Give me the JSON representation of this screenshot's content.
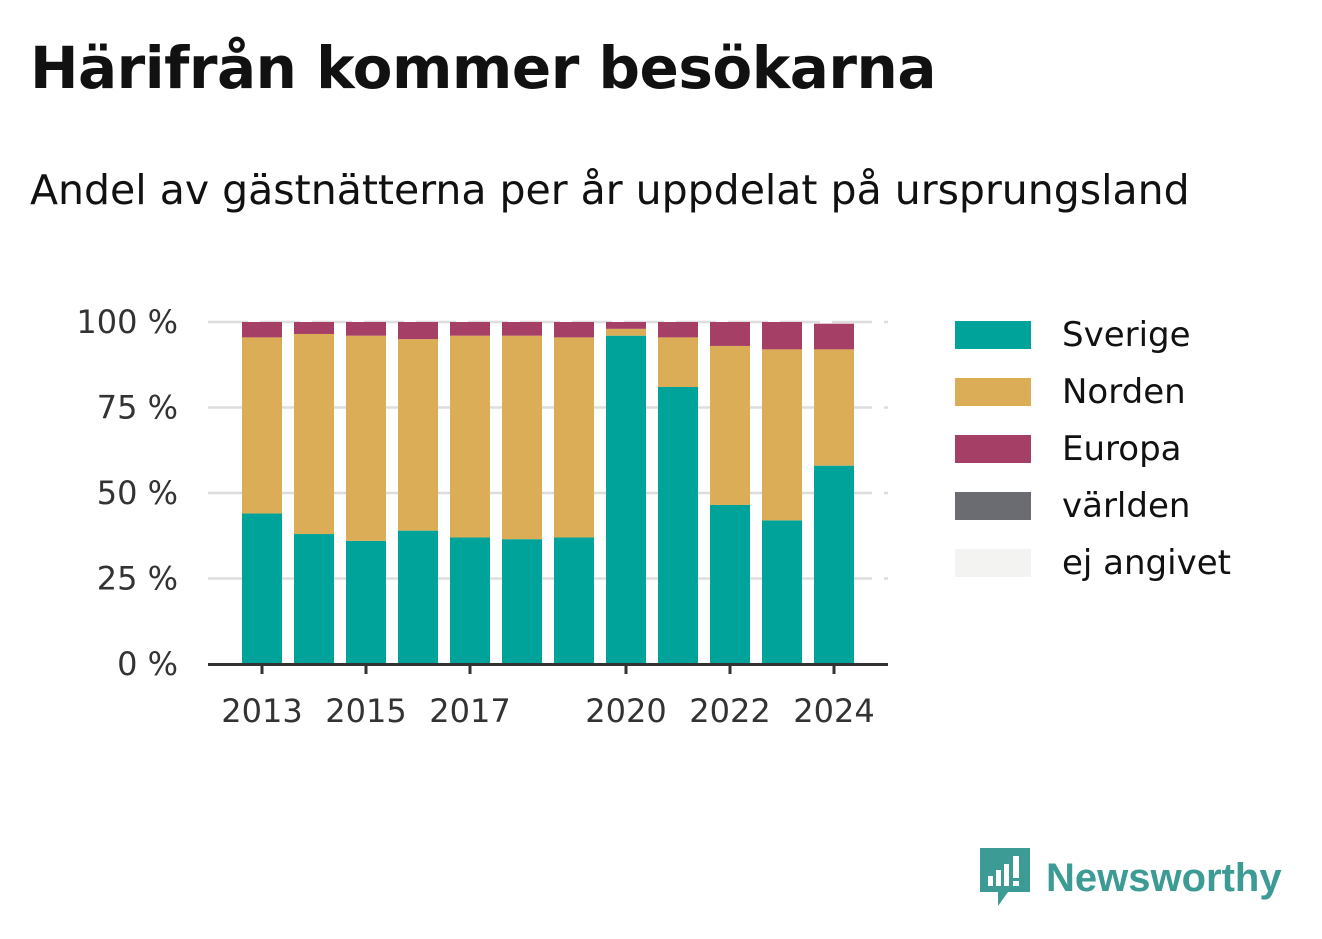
{
  "title": "Härifrån kommer besökarna",
  "subtitle": "Andel av gästnätterna per år uppdelat på ursprungsland",
  "brand": {
    "name": "Newsworthy"
  },
  "colors": {
    "Sverige": "#00a39a",
    "Norden": "#dbad57",
    "Europa": "#a63f66",
    "världen": "#6b6b72",
    "ej angivet": "#f3f3f2"
  },
  "chart_data": {
    "type": "bar",
    "stacked": true,
    "categories": [
      "2013",
      "2014",
      "2015",
      "2016",
      "2017",
      "2018",
      "2019",
      "2020",
      "2021",
      "2022",
      "2023",
      "2024"
    ],
    "x_tick_labels": [
      "2013",
      "",
      "2015",
      "",
      "2017",
      "",
      "",
      "2020",
      "",
      "2022",
      "",
      "2024"
    ],
    "series": [
      {
        "name": "Sverige",
        "values": [
          44,
          38,
          36,
          39,
          37,
          36.5,
          37,
          96,
          81,
          46.5,
          42,
          58
        ]
      },
      {
        "name": "Norden",
        "values": [
          51.5,
          58.5,
          60,
          56,
          59,
          59.5,
          58.5,
          2,
          14.5,
          46.5,
          50,
          34
        ]
      },
      {
        "name": "Europa",
        "values": [
          4.5,
          3.5,
          4,
          5,
          4,
          4,
          4.5,
          2,
          4.5,
          7,
          8,
          7.5
        ]
      },
      {
        "name": "världen",
        "values": [
          0,
          0,
          0,
          0,
          0,
          0,
          0,
          0,
          0,
          0,
          0,
          0
        ]
      },
      {
        "name": "ej angivet",
        "values": [
          0,
          0,
          0,
          0,
          0,
          0,
          0,
          0,
          0,
          0,
          0,
          0
        ]
      }
    ],
    "y_ticks": [
      "0 %",
      "25 %",
      "50 %",
      "75 %",
      "100 %"
    ],
    "ylim": [
      0,
      100
    ],
    "grid": true,
    "legend": "right"
  }
}
